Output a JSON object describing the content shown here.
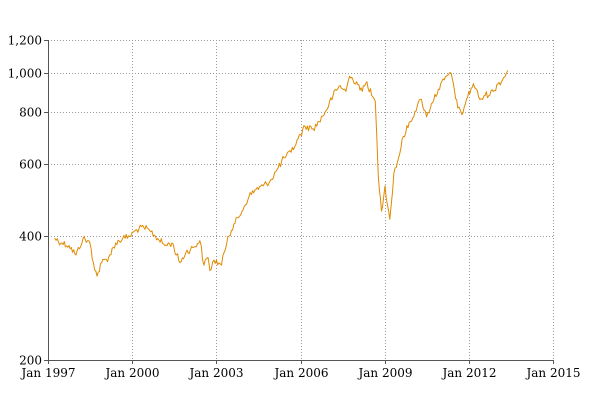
{
  "chart_data": {
    "type": "line",
    "y_scale": "log",
    "grid": true,
    "legend": "none",
    "title": "",
    "xlabel": "",
    "ylabel": "",
    "x_domain": [
      "1997-01-01",
      "2015-01-01"
    ],
    "y_domain": [
      200,
      1200
    ],
    "x_ticks": [
      {
        "date": "1997-01-01",
        "label": "Jan 1997"
      },
      {
        "date": "2000-01-01",
        "label": "Jan 2000"
      },
      {
        "date": "2003-01-01",
        "label": "Jan 2003"
      },
      {
        "date": "2006-01-01",
        "label": "Jan 2006"
      },
      {
        "date": "2009-01-01",
        "label": "Jan 2009"
      },
      {
        "date": "2012-01-01",
        "label": "Jan 2012"
      },
      {
        "date": "2015-01-01",
        "label": "Jan 2015"
      }
    ],
    "y_ticks": [
      {
        "value": 200,
        "label": "200"
      },
      {
        "value": 400,
        "label": "400"
      },
      {
        "value": 600,
        "label": "600"
      },
      {
        "value": 800,
        "label": "800"
      },
      {
        "value": 1000,
        "label": "1,000"
      },
      {
        "value": 1200,
        "label": "1,200"
      }
    ],
    "series": [
      {
        "color": "#e08a00",
        "points": [
          [
            "1997-04-01",
            395
          ],
          [
            "1997-07-01",
            385
          ],
          [
            "1997-10-01",
            380
          ],
          [
            "1998-01-01",
            360
          ],
          [
            "1998-04-01",
            395
          ],
          [
            "1998-07-01",
            385
          ],
          [
            "1998-08-15",
            345
          ],
          [
            "1998-10-01",
            320
          ],
          [
            "1998-12-01",
            345
          ],
          [
            "1999-03-01",
            355
          ],
          [
            "1999-06-01",
            385
          ],
          [
            "1999-09-01",
            395
          ],
          [
            "1999-12-01",
            400
          ],
          [
            "2000-03-01",
            415
          ],
          [
            "2000-06-01",
            420
          ],
          [
            "2000-09-01",
            410
          ],
          [
            "2000-12-01",
            395
          ],
          [
            "2001-03-01",
            380
          ],
          [
            "2001-06-01",
            385
          ],
          [
            "2001-09-15",
            345
          ],
          [
            "2001-12-01",
            365
          ],
          [
            "2002-03-01",
            375
          ],
          [
            "2002-06-01",
            390
          ],
          [
            "2002-07-25",
            340
          ],
          [
            "2002-09-15",
            355
          ],
          [
            "2002-10-10",
            330
          ],
          [
            "2002-12-01",
            350
          ],
          [
            "2003-03-10",
            340
          ],
          [
            "2003-06-01",
            400
          ],
          [
            "2003-09-01",
            430
          ],
          [
            "2003-12-01",
            460
          ],
          [
            "2004-03-01",
            500
          ],
          [
            "2004-06-01",
            520
          ],
          [
            "2004-09-01",
            530
          ],
          [
            "2004-12-01",
            545
          ],
          [
            "2005-03-01",
            580
          ],
          [
            "2005-06-01",
            620
          ],
          [
            "2005-09-01",
            640
          ],
          [
            "2005-12-01",
            690
          ],
          [
            "2006-03-01",
            740
          ],
          [
            "2006-06-15",
            730
          ],
          [
            "2006-09-01",
            760
          ],
          [
            "2006-12-01",
            810
          ],
          [
            "2007-03-01",
            880
          ],
          [
            "2007-06-01",
            930
          ],
          [
            "2007-08-15",
            900
          ],
          [
            "2007-10-01",
            980
          ],
          [
            "2007-11-15",
            960
          ],
          [
            "2008-01-01",
            950
          ],
          [
            "2008-03-15",
            900
          ],
          [
            "2008-05-15",
            950
          ],
          [
            "2008-07-15",
            880
          ],
          [
            "2008-09-01",
            850
          ],
          [
            "2008-10-10",
            560
          ],
          [
            "2008-11-20",
            460
          ],
          [
            "2009-01-05",
            530
          ],
          [
            "2009-03-09",
            440
          ],
          [
            "2009-05-01",
            570
          ],
          [
            "2009-07-01",
            620
          ],
          [
            "2009-09-01",
            700
          ],
          [
            "2009-12-01",
            760
          ],
          [
            "2010-03-01",
            830
          ],
          [
            "2010-04-25",
            860
          ],
          [
            "2010-07-01",
            780
          ],
          [
            "2010-09-01",
            840
          ],
          [
            "2010-12-01",
            910
          ],
          [
            "2011-02-15",
            960
          ],
          [
            "2011-04-30",
            1000
          ],
          [
            "2011-06-15",
            940
          ],
          [
            "2011-08-10",
            820
          ],
          [
            "2011-10-03",
            790
          ],
          [
            "2011-12-01",
            860
          ],
          [
            "2012-03-01",
            940
          ],
          [
            "2012-05-25",
            860
          ],
          [
            "2012-08-01",
            880
          ],
          [
            "2012-11-15",
            900
          ],
          [
            "2013-01-15",
            940
          ],
          [
            "2013-03-15",
            960
          ],
          [
            "2013-05-20",
            1010
          ]
        ]
      }
    ]
  }
}
